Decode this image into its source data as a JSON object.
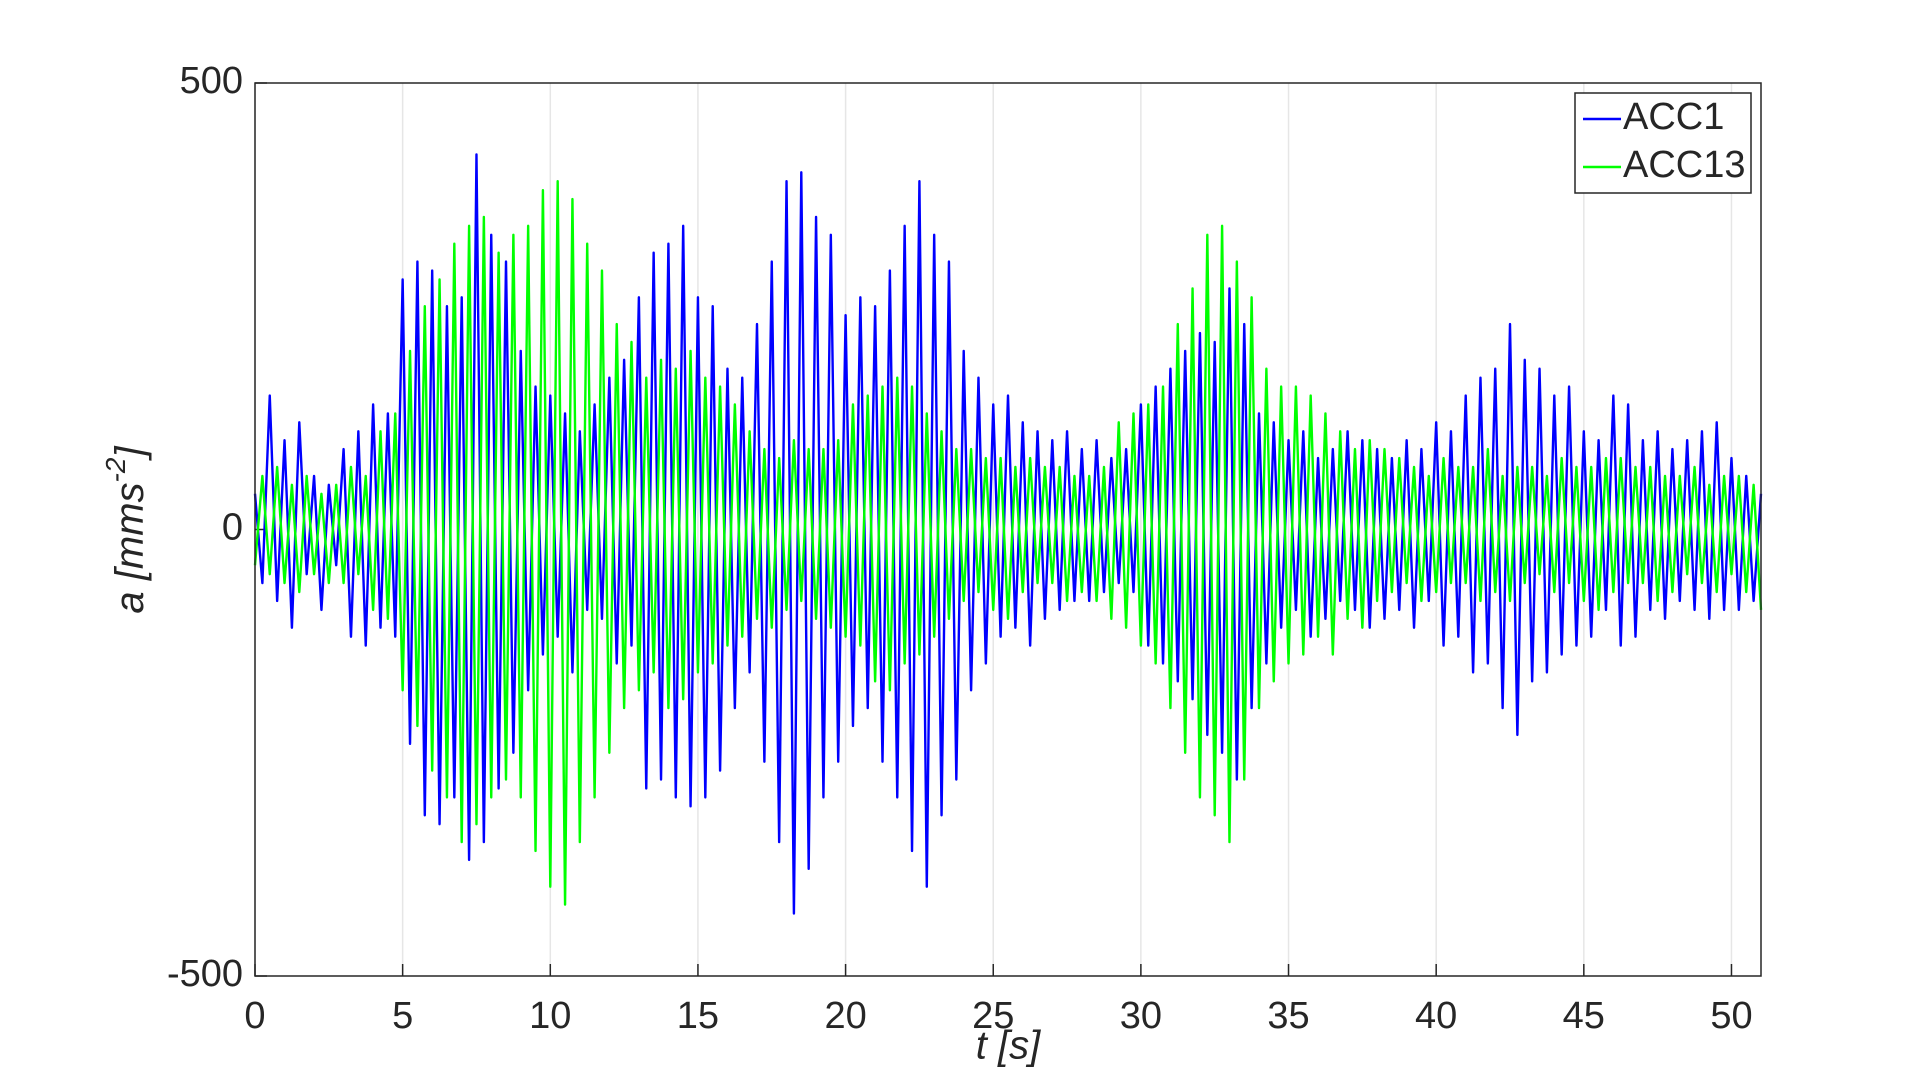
{
  "chart_data": {
    "type": "line",
    "xlabel": "t [s]",
    "ylabel": [
      "a [mms",
      "-2",
      "]"
    ],
    "xlim": [
      0,
      51
    ],
    "ylim": [
      -500,
      500
    ],
    "xticks": [
      0,
      5,
      10,
      15,
      20,
      25,
      30,
      35,
      40,
      45,
      50
    ],
    "yticks": [
      -500,
      0,
      500
    ],
    "grid": "x",
    "legend": "top-right",
    "x": [
      0,
      0.25,
      0.5,
      0.75,
      1,
      1.25,
      1.5,
      1.75,
      2,
      2.25,
      2.5,
      2.75,
      3,
      3.25,
      3.5,
      3.75,
      4,
      4.25,
      4.5,
      4.75,
      5,
      5.25,
      5.5,
      5.75,
      6,
      6.25,
      6.5,
      6.75,
      7,
      7.25,
      7.5,
      7.75,
      8,
      8.25,
      8.5,
      8.75,
      9,
      9.25,
      9.5,
      9.75,
      10,
      10.25,
      10.5,
      10.75,
      11,
      11.25,
      11.5,
      11.75,
      12,
      12.25,
      12.5,
      12.75,
      13,
      13.25,
      13.5,
      13.75,
      14,
      14.25,
      14.5,
      14.75,
      15,
      15.25,
      15.5,
      15.75,
      16,
      16.25,
      16.5,
      16.75,
      17,
      17.25,
      17.5,
      17.75,
      18,
      18.25,
      18.5,
      18.75,
      19,
      19.25,
      19.5,
      19.75,
      20,
      20.25,
      20.5,
      20.75,
      21,
      21.25,
      21.5,
      21.75,
      22,
      22.25,
      22.5,
      22.75,
      23,
      23.25,
      23.5,
      23.75,
      24,
      24.25,
      24.5,
      24.75,
      25,
      25.25,
      25.5,
      25.75,
      26,
      26.25,
      26.5,
      26.75,
      27,
      27.25,
      27.5,
      27.75,
      28,
      28.25,
      28.5,
      28.75,
      29,
      29.25,
      29.5,
      29.75,
      30,
      30.25,
      30.5,
      30.75,
      31,
      31.25,
      31.5,
      31.75,
      32,
      32.25,
      32.5,
      32.75,
      33,
      33.25,
      33.5,
      33.75,
      34,
      34.25,
      34.5,
      34.75,
      35,
      35.25,
      35.5,
      35.75,
      36,
      36.25,
      36.5,
      36.75,
      37,
      37.25,
      37.5,
      37.75,
      38,
      38.25,
      38.5,
      38.75,
      39,
      39.25,
      39.5,
      39.75,
      40,
      40.25,
      40.5,
      40.75,
      41,
      41.25,
      41.5,
      41.75,
      42,
      42.25,
      42.5,
      42.75,
      43,
      43.25,
      43.5,
      43.75,
      44,
      44.25,
      44.5,
      44.75,
      45,
      45.25,
      45.5,
      45.75,
      46,
      46.25,
      46.5,
      46.75,
      47,
      47.25,
      47.5,
      47.75,
      48,
      48.25,
      48.5,
      48.75,
      49,
      49.25,
      49.5,
      49.75,
      50,
      50.25,
      50.5,
      50.75,
      51
    ],
    "series": [
      {
        "name": "ACC1",
        "color": "#0000ff",
        "values": [
          40,
          -60,
          150,
          -80,
          100,
          -110,
          120,
          -50,
          60,
          -90,
          50,
          -40,
          90,
          -120,
          110,
          -130,
          140,
          -110,
          130,
          -120,
          280,
          -240,
          300,
          -320,
          290,
          -330,
          250,
          -300,
          260,
          -370,
          420,
          -350,
          330,
          -290,
          300,
          -250,
          200,
          -180,
          160,
          -140,
          150,
          -120,
          130,
          -160,
          110,
          -90,
          140,
          -100,
          170,
          -150,
          190,
          -130,
          260,
          -290,
          310,
          -280,
          320,
          -300,
          340,
          -310,
          260,
          -300,
          250,
          -270,
          180,
          -200,
          170,
          -160,
          230,
          -260,
          300,
          -350,
          390,
          -430,
          400,
          -380,
          350,
          -300,
          330,
          -260,
          240,
          -220,
          260,
          -200,
          250,
          -260,
          290,
          -300,
          340,
          -360,
          390,
          -400,
          330,
          -320,
          300,
          -280,
          200,
          -180,
          170,
          -150,
          140,
          -120,
          150,
          -110,
          120,
          -130,
          110,
          -100,
          100,
          -90,
          110,
          -80,
          90,
          -80,
          100,
          -70,
          80,
          -60,
          90,
          -70,
          140,
          -130,
          160,
          -150,
          180,
          -170,
          200,
          -190,
          220,
          -230,
          210,
          -250,
          270,
          -280,
          230,
          -200,
          130,
          -150,
          120,
          -110,
          100,
          -90,
          110,
          -120,
          80,
          -100,
          90,
          -80,
          110,
          -90,
          100,
          -110,
          90,
          -100,
          80,
          -90,
          100,
          -110,
          90,
          -80,
          120,
          -130,
          110,
          -120,
          150,
          -160,
          170,
          -150,
          180,
          -200,
          230,
          -230,
          190,
          -170,
          180,
          -160,
          150,
          -140,
          160,
          -130,
          110,
          -120,
          100,
          -90,
          150,
          -130,
          140,
          -120,
          100,
          -90,
          110,
          -100,
          90,
          -80,
          100,
          -90,
          110,
          -100,
          120,
          -90,
          80,
          -90,
          60,
          -80,
          40
        ]
      },
      {
        "name": "ACC13",
        "color": "#00ff00",
        "values": [
          -40,
          60,
          -50,
          70,
          -60,
          50,
          -70,
          60,
          -50,
          40,
          -60,
          50,
          -60,
          70,
          -50,
          60,
          -90,
          110,
          -100,
          130,
          -180,
          200,
          -220,
          250,
          -270,
          280,
          -300,
          320,
          -350,
          340,
          -330,
          350,
          -300,
          310,
          -280,
          330,
          -300,
          340,
          -360,
          380,
          -400,
          390,
          -420,
          370,
          -350,
          320,
          -300,
          290,
          -250,
          230,
          -200,
          210,
          -180,
          170,
          -160,
          190,
          -200,
          180,
          -190,
          200,
          -160,
          170,
          -150,
          160,
          -130,
          140,
          -120,
          110,
          -100,
          90,
          -110,
          80,
          -90,
          100,
          -80,
          90,
          -100,
          90,
          -110,
          100,
          -120,
          140,
          -130,
          150,
          -170,
          160,
          -180,
          170,
          -150,
          160,
          -140,
          130,
          -120,
          110,
          -100,
          90,
          -80,
          90,
          -70,
          80,
          -90,
          80,
          -100,
          70,
          -70,
          80,
          -60,
          70,
          -60,
          70,
          -80,
          60,
          -70,
          60,
          -80,
          70,
          -100,
          120,
          -110,
          130,
          -130,
          140,
          -150,
          160,
          -200,
          230,
          -250,
          270,
          -300,
          330,
          -320,
          340,
          -350,
          300,
          -280,
          260,
          -200,
          180,
          -170,
          160,
          -150,
          160,
          -140,
          150,
          -120,
          130,
          -140,
          110,
          -100,
          90,
          -110,
          100,
          -80,
          90,
          -70,
          80,
          -60,
          70,
          -80,
          60,
          -70,
          80,
          -60,
          70,
          -60,
          70,
          -80,
          90,
          -70,
          60,
          -80,
          70,
          -60,
          70,
          -50,
          60,
          -70,
          80,
          -60,
          70,
          -80,
          70,
          -90,
          80,
          -70,
          80,
          -60,
          70,
          -60,
          70,
          -80,
          60,
          -70,
          60,
          -50,
          70,
          -60,
          50,
          -70,
          60,
          -50,
          60,
          -70,
          50,
          -90
        ]
      }
    ]
  }
}
